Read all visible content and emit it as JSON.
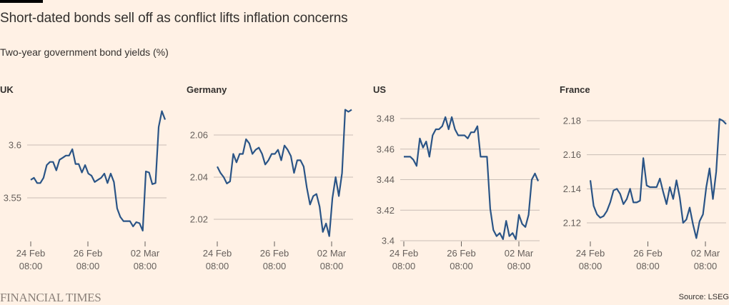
{
  "header": {
    "title": "Short-dated bonds sell off as conflict lifts inflation concerns",
    "subtitle": "Two-year government bond yields (%)"
  },
  "footer": {
    "logo": "FINANCIAL TIMES",
    "source": "Source: LSEG"
  },
  "colors": {
    "background": "#fff1e5",
    "line": "#2a5486",
    "grid": "#c8bdb5",
    "text": "#33302e"
  },
  "chart_data": [
    {
      "type": "line",
      "title": "UK",
      "xlabel": "",
      "ylabel": "Two-year government bond yields (%)",
      "x_ticks": [
        {
          "label": [
            "24 Feb",
            "08:00"
          ],
          "index": 0
        },
        {
          "label": [
            "26 Feb",
            "08:00"
          ],
          "index": 19
        },
        {
          "label": [
            "02 Mar",
            "08:00"
          ],
          "index": 38
        }
      ],
      "y_ticks": [
        3.55,
        3.6
      ],
      "y_tick_labels": [
        "3.55",
        "3.6"
      ],
      "ylim": [
        3.52,
        3.63
      ],
      "grid": true,
      "series": [
        {
          "name": "UK",
          "values": [
            3.567,
            3.569,
            3.564,
            3.564,
            3.569,
            3.581,
            3.584,
            3.584,
            3.576,
            3.586,
            3.588,
            3.59,
            3.59,
            3.596,
            3.582,
            3.582,
            3.574,
            3.581,
            3.573,
            3.571,
            3.565,
            3.567,
            3.569,
            3.573,
            3.564,
            3.573,
            3.565,
            3.54,
            3.532,
            3.528,
            3.528,
            3.528,
            3.523,
            3.527,
            3.526,
            3.519,
            3.575,
            3.574,
            3.563,
            3.564,
            3.617,
            3.632,
            3.624
          ]
        }
      ]
    },
    {
      "type": "line",
      "title": "Germany",
      "xlabel": "",
      "ylabel": "Two-year government bond yields (%)",
      "x_ticks": [
        {
          "label": [
            "24 Feb",
            "08:00"
          ],
          "index": 0
        },
        {
          "label": [
            "26 Feb",
            "08:00"
          ],
          "index": 19
        },
        {
          "label": [
            "02 Mar",
            "08:00"
          ],
          "index": 38
        }
      ],
      "y_ticks": [
        2.02,
        2.04,
        2.06
      ],
      "y_tick_labels": [
        "2.02",
        "2.04",
        "2.06"
      ],
      "ylim": [
        2.01,
        2.075
      ],
      "grid": true,
      "series": [
        {
          "name": "Germany",
          "values": [
            2.045,
            2.042,
            2.04,
            2.037,
            2.038,
            2.051,
            2.047,
            2.051,
            2.051,
            2.058,
            2.056,
            2.051,
            2.053,
            2.054,
            2.051,
            2.046,
            2.048,
            2.051,
            2.051,
            2.053,
            2.048,
            2.055,
            2.053,
            2.05,
            2.042,
            2.048,
            2.048,
            2.045,
            2.035,
            2.027,
            2.031,
            2.032,
            2.026,
            2.014,
            2.018,
            2.012,
            2.03,
            2.04,
            2.031,
            2.042,
            2.072,
            2.071,
            2.072
          ]
        }
      ]
    },
    {
      "type": "line",
      "title": "US",
      "xlabel": "",
      "ylabel": "Two-year government bond yields (%)",
      "x_ticks": [
        {
          "label": [
            "24 Feb",
            "08:00"
          ],
          "index": 0
        },
        {
          "label": [
            "26 Feb",
            "08:00"
          ],
          "index": 19
        },
        {
          "label": [
            "02 Mar",
            "08:00"
          ],
          "index": 38
        }
      ],
      "y_ticks": [
        3.4,
        3.42,
        3.44,
        3.46,
        3.48
      ],
      "y_tick_labels": [
        "3.4",
        "3.42",
        "3.44",
        "3.46",
        "3.48"
      ],
      "ylim": [
        3.4,
        3.485
      ],
      "grid": true,
      "series": [
        {
          "name": "US",
          "values": [
            3.455,
            3.455,
            3.455,
            3.453,
            3.449,
            3.467,
            3.461,
            3.465,
            3.455,
            3.469,
            3.473,
            3.473,
            3.475,
            3.481,
            3.473,
            3.481,
            3.473,
            3.469,
            3.469,
            3.469,
            3.467,
            3.471,
            3.471,
            3.475,
            3.455,
            3.455,
            3.455,
            3.421,
            3.407,
            3.403,
            3.405,
            3.401,
            3.413,
            3.403,
            3.405,
            3.401,
            3.417,
            3.411,
            3.409,
            3.417,
            3.44,
            3.444,
            3.439
          ]
        }
      ]
    },
    {
      "type": "line",
      "title": "France",
      "xlabel": "",
      "ylabel": "Two-year government bond yields (%)",
      "x_ticks": [
        {
          "label": [
            "24 Feb",
            "08:00"
          ],
          "index": 0
        },
        {
          "label": [
            "26 Feb",
            "08:00"
          ],
          "index": 19
        },
        {
          "label": [
            "02 Mar",
            "08:00"
          ],
          "index": 38
        }
      ],
      "y_ticks": [
        2.12,
        2.14,
        2.16,
        2.18
      ],
      "y_tick_labels": [
        "2.12",
        "2.14",
        "2.16",
        "2.18"
      ],
      "ylim": [
        2.11,
        2.185
      ],
      "grid": true,
      "series": [
        {
          "name": "France",
          "values": [
            2.145,
            2.13,
            2.125,
            2.123,
            2.124,
            2.127,
            2.132,
            2.139,
            2.14,
            2.137,
            2.131,
            2.134,
            2.14,
            2.132,
            2.132,
            2.133,
            2.158,
            2.142,
            2.141,
            2.141,
            2.141,
            2.146,
            2.138,
            2.131,
            2.141,
            2.134,
            2.145,
            2.135,
            2.12,
            2.122,
            2.129,
            2.119,
            2.111,
            2.121,
            2.125,
            2.141,
            2.152,
            2.134,
            2.15,
            2.181,
            2.18,
            2.178
          ]
        }
      ]
    }
  ]
}
